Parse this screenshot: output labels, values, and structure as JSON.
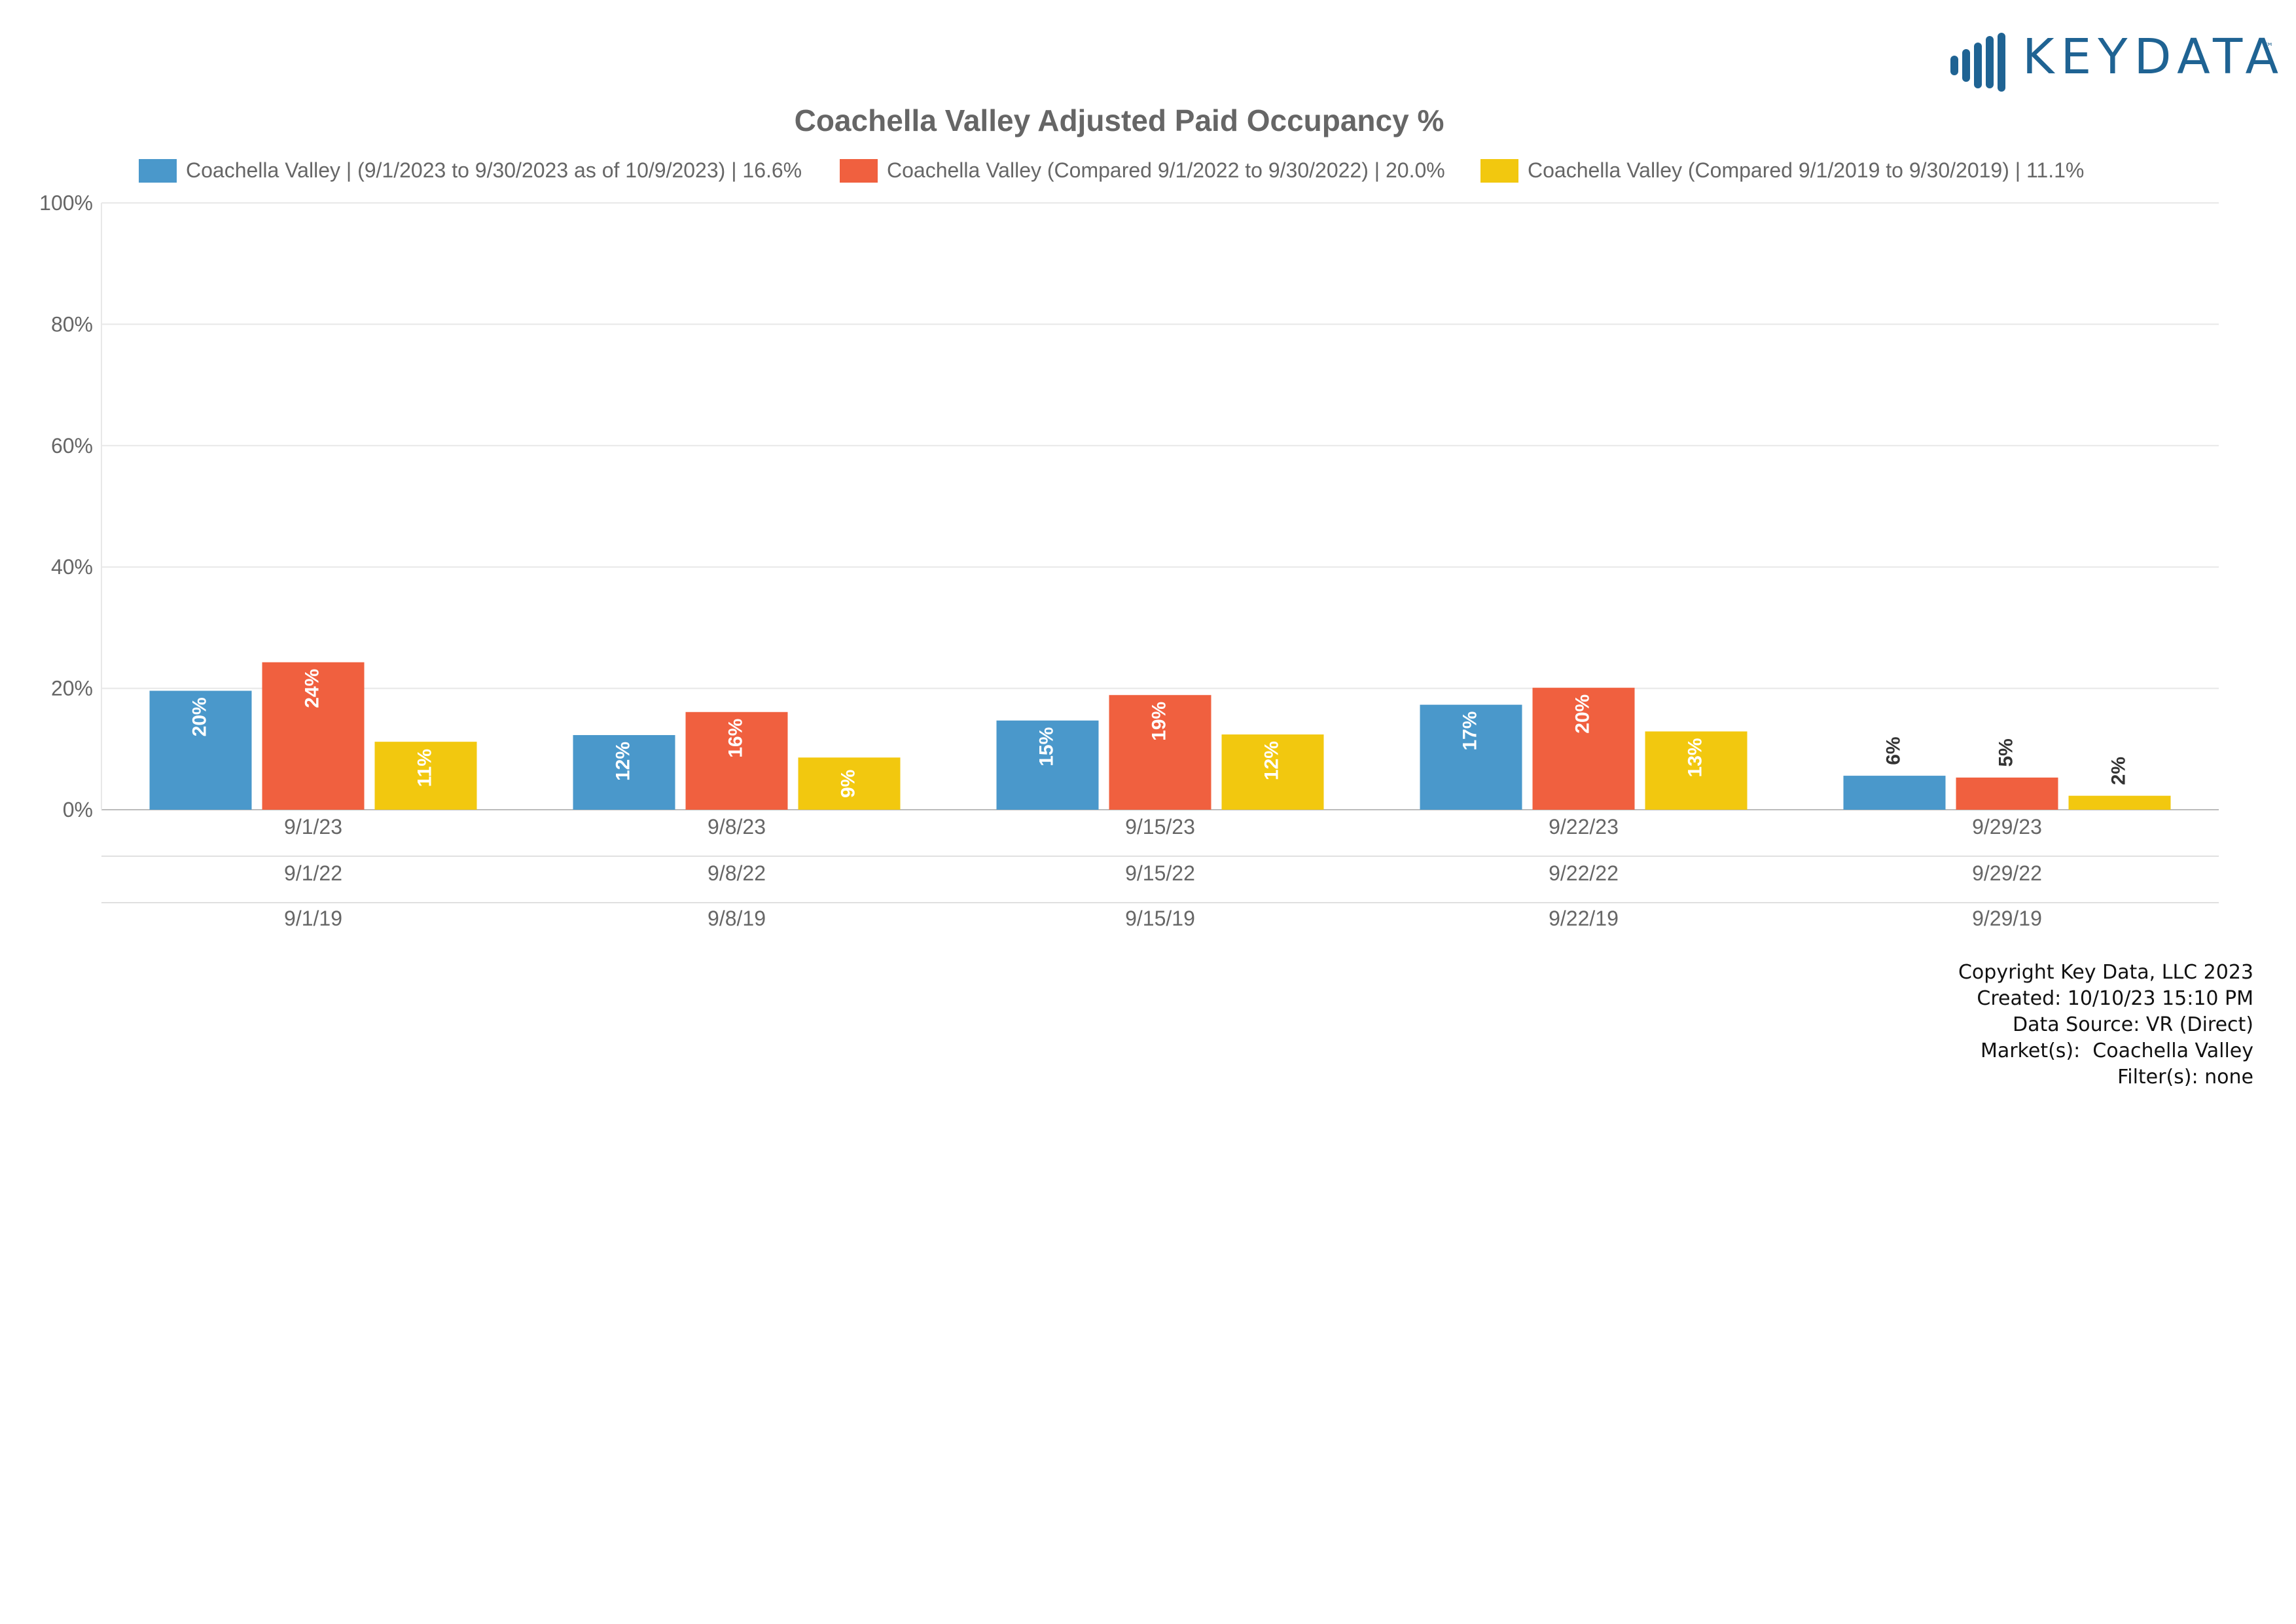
{
  "brand": {
    "logo_text": "KEYDATA",
    "trademark": "™",
    "color": "#1f6393"
  },
  "chart_data": {
    "type": "bar",
    "title": "Coachella Valley Adjusted Paid Occupancy %",
    "xlabel": "",
    "ylabel": "",
    "ylim": [
      0,
      100
    ],
    "yticks": [
      "0%",
      "20%",
      "40%",
      "60%",
      "80%",
      "100%"
    ],
    "grid": true,
    "legend_position": "top",
    "categories": [
      [
        "9/1/23",
        "9/1/22",
        "9/1/19"
      ],
      [
        "9/8/23",
        "9/8/22",
        "9/8/19"
      ],
      [
        "9/15/23",
        "9/15/22",
        "9/15/19"
      ],
      [
        "9/22/23",
        "9/22/22",
        "9/22/19"
      ],
      [
        "9/29/23",
        "9/29/22",
        "9/29/19"
      ]
    ],
    "series": [
      {
        "name": "Coachella Valley | (9/1/2023 to 9/30/2023 as of 10/9/2023) | 16.6%",
        "color": "#4a98cb",
        "label_color": "#ffffff",
        "values": [
          19.6,
          12.3,
          14.7,
          17.3,
          5.6
        ],
        "labels": [
          "20%",
          "12%",
          "15%",
          "17%",
          "6%"
        ]
      },
      {
        "name": "Coachella Valley (Compared 9/1/2022 to 9/30/2022) | 20.0%",
        "color": "#f0603f",
        "label_color": "#ffffff",
        "values": [
          24.3,
          16.1,
          18.9,
          20.1,
          5.3
        ],
        "labels": [
          "24%",
          "16%",
          "19%",
          "20%",
          "5%"
        ]
      },
      {
        "name": "Coachella Valley (Compared 9/1/2019 to 9/30/2019) | 11.1%",
        "color": "#f2c80f",
        "label_color": "#ffffff",
        "values": [
          11.2,
          8.6,
          12.4,
          12.9,
          2.3
        ],
        "labels": [
          "11%",
          "9%",
          "12%",
          "13%",
          "2%"
        ]
      }
    ]
  },
  "footer": {
    "copyright": "Copyright Key Data, LLC 2023",
    "created": "Created: 10/10/23 15:10 PM",
    "data_source": "Data Source: VR (Direct)",
    "markets": "Market(s):  Coachella Valley",
    "filters": "Filter(s): none"
  }
}
